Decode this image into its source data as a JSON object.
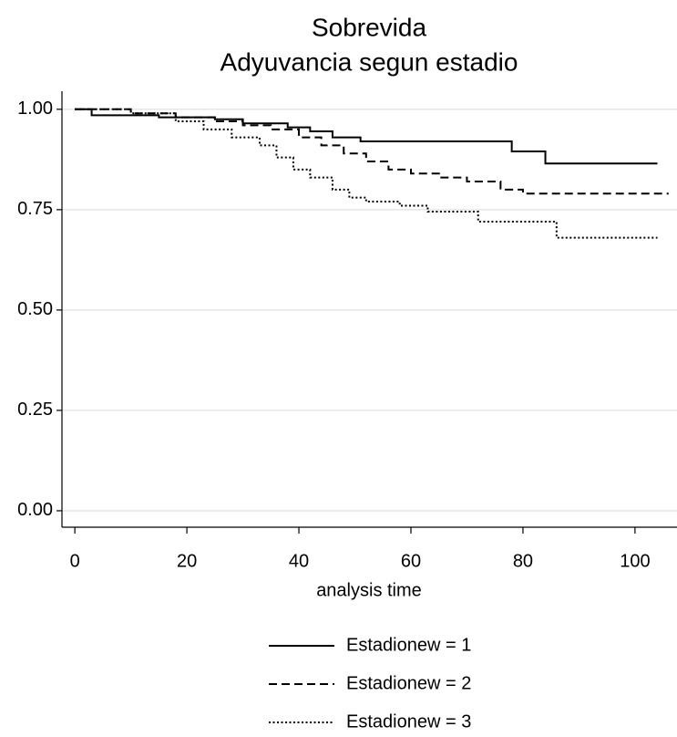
{
  "chart_data": {
    "type": "line",
    "step": true,
    "title": "Sobrevida",
    "subtitle": "Adyuvancia segun estadio",
    "x_label": "analysis time",
    "xlim": [
      -2.3,
      107.5
    ],
    "ylim": [
      -0.041,
      1.045
    ],
    "xticks": [
      0,
      20,
      40,
      60,
      80,
      100
    ],
    "yticks": [
      {
        "value": 0,
        "label": "0.00"
      },
      {
        "value": 0.25,
        "label": "0.25"
      },
      {
        "value": 0.5,
        "label": "0.50"
      },
      {
        "value": 0.75,
        "label": "0.75"
      },
      {
        "value": 1,
        "label": "1.00"
      }
    ],
    "grid": true,
    "legend": "bottom",
    "series": [
      {
        "name": "Estadionew = 1",
        "color": "#000000",
        "dash": "solid",
        "x": [
          0,
          3,
          3,
          15,
          15,
          25,
          25,
          30,
          30,
          38,
          38,
          42,
          42,
          46,
          46,
          51,
          51,
          78,
          78,
          84,
          84,
          104
        ],
        "values": [
          1,
          1,
          0.985,
          0.985,
          0.98,
          0.98,
          0.975,
          0.975,
          0.965,
          0.965,
          0.955,
          0.955,
          0.945,
          0.945,
          0.93,
          0.93,
          0.92,
          0.92,
          0.895,
          0.895,
          0.865,
          0.865
        ]
      },
      {
        "name": "Estadionew = 2",
        "color": "#000000",
        "dash": "dashed",
        "x": [
          0,
          10,
          10,
          18,
          18,
          25,
          25,
          30,
          30,
          35,
          35,
          40,
          40,
          44,
          44,
          48,
          48,
          52,
          52,
          56,
          56,
          60,
          60,
          65,
          65,
          70,
          70,
          76,
          76,
          80,
          80,
          106
        ],
        "values": [
          1,
          1,
          0.99,
          0.99,
          0.98,
          0.98,
          0.97,
          0.97,
          0.96,
          0.96,
          0.95,
          0.95,
          0.93,
          0.93,
          0.91,
          0.91,
          0.89,
          0.89,
          0.87,
          0.87,
          0.85,
          0.85,
          0.84,
          0.84,
          0.83,
          0.83,
          0.82,
          0.82,
          0.8,
          0.8,
          0.79,
          0.79
        ]
      },
      {
        "name": "Estadionew = 3",
        "color": "#000000",
        "dash": "dotted",
        "x": [
          0,
          10,
          10,
          18,
          18,
          23,
          23,
          28,
          28,
          33,
          33,
          36,
          36,
          39,
          39,
          42,
          42,
          46,
          46,
          49,
          49,
          52,
          52,
          58,
          58,
          63,
          63,
          72,
          72,
          86,
          86,
          104
        ],
        "values": [
          1,
          1,
          0.99,
          0.99,
          0.97,
          0.97,
          0.95,
          0.95,
          0.93,
          0.93,
          0.91,
          0.91,
          0.88,
          0.88,
          0.85,
          0.85,
          0.83,
          0.83,
          0.8,
          0.8,
          0.78,
          0.78,
          0.77,
          0.77,
          0.76,
          0.76,
          0.745,
          0.745,
          0.72,
          0.72,
          0.68,
          0.68
        ]
      }
    ]
  }
}
